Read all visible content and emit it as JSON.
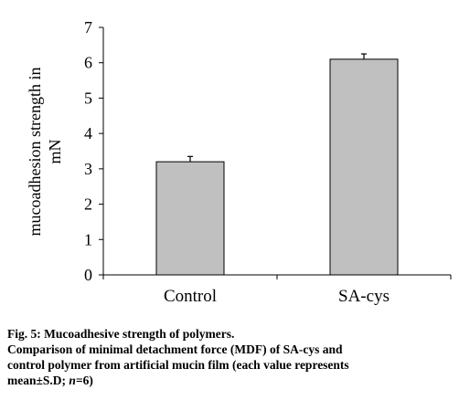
{
  "chart_data": {
    "type": "bar",
    "categories": [
      "Control",
      "SA-cys"
    ],
    "values": [
      3.2,
      6.1
    ],
    "errors": [
      0.15,
      0.15
    ],
    "ylabel_line1": "mucoadhesion strength in",
    "ylabel_line2": "mN",
    "xlabel": "",
    "ylim": [
      0,
      7
    ],
    "yticks": [
      0,
      1,
      2,
      3,
      4,
      5,
      6,
      7
    ],
    "grid": false,
    "legend": "none",
    "bar_color": "#c0c0c0"
  },
  "caption": {
    "line1": "Fig. 5: Mucoadhesive strength of polymers.",
    "line2": "Comparison of minimal detachment force (MDF) of SA-cys and",
    "line3_prefix": "control polymer from artificial mucin film (each value represents",
    "line4_prefix": "mean±S.D; ",
    "line4_n": "n",
    "line4_suffix": "=6)"
  }
}
